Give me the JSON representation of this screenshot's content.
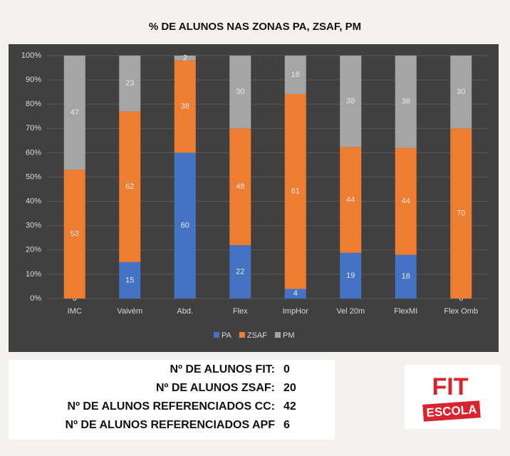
{
  "chart_data": {
    "type": "bar",
    "stacking": "percent",
    "title": "% DE ALUNOS NAS ZONAS PA, ZSAF, PM",
    "categories": [
      "IMC",
      "Vaivém",
      "Abd.",
      "Flex",
      "ImpHor",
      "Vel 20m",
      "FlexMI",
      "Flex Omb"
    ],
    "series": [
      {
        "name": "PA",
        "color": "#4472c4",
        "values": [
          0,
          15,
          60,
          22,
          4,
          19,
          18,
          0
        ]
      },
      {
        "name": "ZSAF",
        "color": "#ed7d31",
        "values": [
          53,
          62,
          38,
          48,
          81,
          44,
          44,
          70
        ]
      },
      {
        "name": "PM",
        "color": "#a5a5a5",
        "values": [
          47,
          23,
          2,
          30,
          16,
          38,
          38,
          30
        ]
      }
    ],
    "ylim": [
      0,
      100
    ],
    "yticks": [
      {
        "value": 0,
        "label": "0%"
      },
      {
        "value": 10,
        "label": "10%"
      },
      {
        "value": 20,
        "label": "20%"
      },
      {
        "value": 30,
        "label": "30%"
      },
      {
        "value": 40,
        "label": "40%"
      },
      {
        "value": 50,
        "label": "50%"
      },
      {
        "value": 60,
        "label": "60%"
      },
      {
        "value": 70,
        "label": "70%"
      },
      {
        "value": 80,
        "label": "80%"
      },
      {
        "value": 90,
        "label": "90%"
      },
      {
        "value": 100,
        "label": "100%"
      }
    ],
    "grid": true,
    "legend": "bottom"
  },
  "stats": [
    {
      "label": "Nº DE ALUNOS FIT:",
      "value": 0
    },
    {
      "label": "Nº DE ALUNOS ZSAF:",
      "value": 20
    },
    {
      "label": "Nº DE ALUNOS REFERENCIADOS CC:",
      "value": 42
    },
    {
      "label": "Nº DE ALUNOS REFERENCIADOS APF",
      "value": 6
    }
  ],
  "logo": {
    "top": "FIT",
    "bottom": "ESCOLA"
  }
}
